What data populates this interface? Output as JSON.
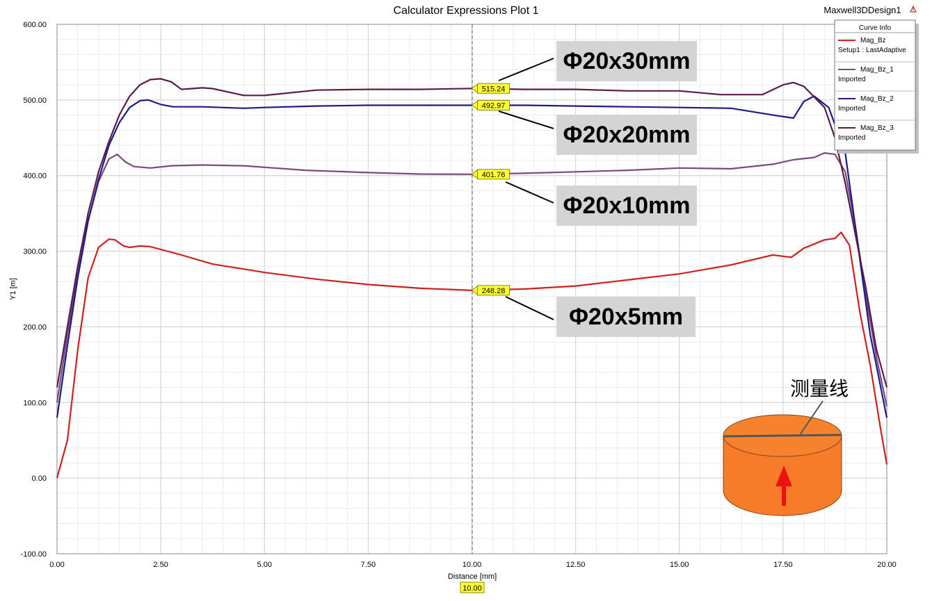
{
  "header": {
    "title": "Calculator Expressions Plot 1",
    "design_name": "Maxwell3DDesign1"
  },
  "legend": {
    "title": "Curve Info",
    "entries": [
      {
        "name": "Mag_Bz",
        "source": "Setup1 : LastAdaptive",
        "color": "#d21e1e"
      },
      {
        "name": "Mag_Bz_1",
        "source": "Imported",
        "color": "#7a4a7a"
      },
      {
        "name": "Mag_Bz_2",
        "source": "Imported",
        "color": "#1a1a8c"
      },
      {
        "name": "Mag_Bz_3",
        "source": "Imported",
        "color": "#5a1a4a"
      }
    ]
  },
  "cursor": {
    "x": 10.0,
    "x_label": "10.00"
  },
  "annotations": [
    {
      "text": "Φ20x30mm",
      "series_index": 3
    },
    {
      "text": "Φ20x20mm",
      "series_index": 2
    },
    {
      "text": "Φ20x10mm",
      "series_index": 1
    },
    {
      "text": "Φ20x5mm",
      "series_index": 0
    }
  ],
  "inset": {
    "label": "测量线"
  },
  "chart_data": {
    "type": "line",
    "title": "Calculator Expressions Plot 1",
    "xlabel": "Distance [mm]",
    "ylabel": "Y1 [m]",
    "xlim": [
      0,
      20
    ],
    "ylim": [
      -100,
      600
    ],
    "x_ticks": [
      "0.00",
      "2.50",
      "5.00",
      "7.50",
      "10.00",
      "12.50",
      "15.00",
      "17.50",
      "20.00"
    ],
    "y_ticks": [
      "-100.00",
      "0.00",
      "100.00",
      "200.00",
      "300.00",
      "400.00",
      "500.00",
      "600.00"
    ],
    "grid": true,
    "legend_position": "top-right",
    "series": [
      {
        "name": "Mag_Bz",
        "color": "#d21e1e",
        "marker_value": "248.28",
        "x": [
          0,
          0.25,
          0.5,
          0.75,
          1.0,
          1.25,
          1.4,
          1.6,
          1.75,
          2.0,
          2.25,
          3.0,
          3.75,
          5.0,
          6.25,
          7.5,
          8.75,
          10.0,
          11.25,
          12.5,
          13.75,
          15.0,
          16.25,
          17.25,
          17.7,
          18.0,
          18.5,
          18.75,
          18.9,
          19.1,
          19.35,
          19.6,
          19.85,
          20.0
        ],
        "y": [
          0,
          50,
          170,
          265,
          305,
          316,
          315,
          307,
          305,
          307,
          306,
          295,
          283,
          272,
          263,
          256,
          251,
          248.28,
          250,
          254,
          262,
          270,
          282,
          295,
          292,
          304,
          315,
          317,
          325,
          308,
          220,
          150,
          65,
          18
        ]
      },
      {
        "name": "Mag_Bz_1",
        "color": "#7a4a7a",
        "marker_value": "401.76",
        "x": [
          0,
          0.25,
          0.5,
          0.75,
          1.0,
          1.25,
          1.45,
          1.65,
          1.85,
          2.25,
          2.75,
          3.5,
          4.5,
          6.0,
          7.5,
          8.75,
          10.0,
          11.25,
          12.5,
          13.75,
          15.0,
          16.25,
          17.25,
          17.75,
          18.25,
          18.5,
          18.75,
          19.0,
          19.25,
          19.5,
          19.75,
          20.0
        ],
        "y": [
          100,
          190,
          270,
          340,
          392,
          422,
          428,
          418,
          412,
          410,
          413,
          414,
          413,
          407,
          404,
          402,
          401.76,
          403,
          405,
          407,
          410,
          409,
          415,
          421,
          424,
          430,
          428,
          405,
          330,
          240,
          160,
          95
        ]
      },
      {
        "name": "Mag_Bz_2",
        "color": "#1a1a8c",
        "marker_value": "492.97",
        "x": [
          0,
          0.25,
          0.5,
          0.75,
          1.0,
          1.25,
          1.5,
          1.75,
          2.0,
          2.2,
          2.5,
          2.8,
          3.5,
          4.5,
          5.0,
          6.25,
          7.5,
          8.75,
          10.0,
          11.25,
          12.5,
          13.75,
          15.0,
          16.25,
          17.25,
          17.75,
          18.0,
          18.25,
          18.6,
          19.0,
          19.3,
          19.6,
          20.0
        ],
        "y": [
          80,
          175,
          265,
          340,
          395,
          440,
          470,
          490,
          499,
          500,
          494,
          491,
          491,
          489,
          490,
          492,
          493,
          493,
          492.97,
          493,
          492,
          491,
          490,
          489,
          480,
          476,
          498,
          505,
          490,
          430,
          310,
          190,
          80
        ]
      },
      {
        "name": "Mag_Bz_3",
        "color": "#5a1a4a",
        "marker_value": "515.24",
        "x": [
          0,
          0.25,
          0.5,
          0.75,
          1.0,
          1.25,
          1.5,
          1.75,
          2.0,
          2.25,
          2.5,
          2.75,
          3.0,
          3.5,
          3.75,
          4.5,
          5.0,
          6.25,
          7.5,
          8.75,
          10.0,
          11.25,
          12.5,
          13.75,
          15.0,
          16.0,
          17.0,
          17.5,
          17.75,
          18.0,
          18.5,
          18.75,
          19.0,
          19.25,
          19.5,
          19.75,
          20.0
        ],
        "y": [
          120,
          200,
          280,
          350,
          405,
          445,
          480,
          505,
          520,
          527,
          528,
          524,
          514,
          516,
          515,
          506,
          506,
          513,
          514,
          514,
          515.24,
          514,
          514,
          512,
          512,
          507,
          507,
          520,
          523,
          518,
          490,
          450,
          390,
          320,
          250,
          170,
          120
        ]
      }
    ]
  }
}
